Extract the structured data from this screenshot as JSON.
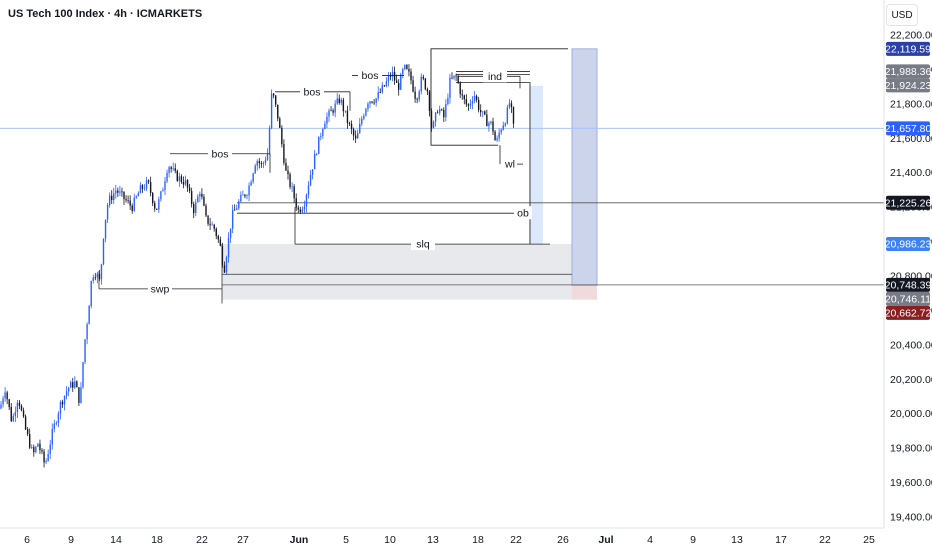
{
  "header": {
    "title": "US Tech 100 Index · 4h · ICMARKETS",
    "currency": "USD"
  },
  "colors": {
    "up": "#2962ff",
    "down": "#131722",
    "accent": "#2962ff",
    "grey_zone": "#e6e7ea",
    "target_zone": "#c5cfe8",
    "light_blue_zone": "#d8e6fb",
    "stop_zone": "#f0d6d8",
    "badge_blue": "#2a3fa8",
    "badge_grey": "#787b86",
    "badge_light_blue": "#3d83f0",
    "badge_black": "#131722",
    "badge_red": "#8a1f22"
  },
  "chart_data": {
    "type": "candlestick",
    "title": "US Tech 100 Index · 4h · ICMARKETS",
    "x_ticks": [
      "6",
      "9",
      "14",
      "18",
      "22",
      "27",
      "Jun",
      "5",
      "10",
      "13",
      "18",
      "22",
      "26",
      "Jul",
      "4",
      "9",
      "13",
      "17",
      "22",
      "25"
    ],
    "y_ticks": [
      "22,200.00",
      "22,000.00",
      "21,800.00",
      "21,600.00",
      "21,400.00",
      "21,200.00",
      "21,000.00",
      "20,800.00",
      "20,600.00",
      "20,400.00",
      "20,200.00",
      "20,000.00",
      "19,800.00",
      "19,600.00",
      "19,400.00"
    ],
    "ylim": [
      19360,
      22290
    ],
    "candle_anchors": [
      [
        0,
        20030
      ],
      [
        5,
        20150
      ],
      [
        12,
        19950
      ],
      [
        18,
        20100
      ],
      [
        25,
        19920
      ],
      [
        33,
        19760
      ],
      [
        38,
        19830
      ],
      [
        45,
        19700
      ],
      [
        52,
        19880
      ],
      [
        60,
        20050
      ],
      [
        68,
        20150
      ],
      [
        75,
        20180
      ],
      [
        80,
        20060
      ],
      [
        84,
        20380
      ],
      [
        88,
        20580
      ],
      [
        92,
        20810
      ],
      [
        96,
        20820
      ],
      [
        100,
        20760
      ],
      [
        104,
        21080
      ],
      [
        108,
        21230
      ],
      [
        116,
        21300
      ],
      [
        124,
        21250
      ],
      [
        132,
        21200
      ],
      [
        140,
        21300
      ],
      [
        148,
        21340
      ],
      [
        156,
        21180
      ],
      [
        162,
        21290
      ],
      [
        168,
        21450
      ],
      [
        176,
        21380
      ],
      [
        186,
        21340
      ],
      [
        194,
        21180
      ],
      [
        200,
        21300
      ],
      [
        206,
        21130
      ],
      [
        214,
        21080
      ],
      [
        220,
        20980
      ],
      [
        224,
        20830
      ],
      [
        232,
        21150
      ],
      [
        240,
        21240
      ],
      [
        248,
        21300
      ],
      [
        256,
        21480
      ],
      [
        262,
        21440
      ],
      [
        268,
        21520
      ],
      [
        272,
        21880
      ],
      [
        278,
        21720
      ],
      [
        286,
        21400
      ],
      [
        292,
        21300
      ],
      [
        298,
        21180
      ],
      [
        304,
        21220
      ],
      [
        310,
        21380
      ],
      [
        316,
        21520
      ],
      [
        324,
        21700
      ],
      [
        332,
        21760
      ],
      [
        340,
        21830
      ],
      [
        348,
        21690
      ],
      [
        356,
        21580
      ],
      [
        362,
        21720
      ],
      [
        368,
        21820
      ],
      [
        376,
        21830
      ],
      [
        384,
        21900
      ],
      [
        392,
        21980
      ],
      [
        398,
        21890
      ],
      [
        404,
        22010
      ],
      [
        410,
        21960
      ],
      [
        416,
        21830
      ],
      [
        422,
        21950
      ],
      [
        428,
        21870
      ],
      [
        432,
        21640
      ],
      [
        438,
        21780
      ],
      [
        444,
        21720
      ],
      [
        450,
        21930
      ],
      [
        456,
        21960
      ],
      [
        462,
        21840
      ],
      [
        468,
        21780
      ],
      [
        474,
        21860
      ],
      [
        480,
        21760
      ],
      [
        486,
        21700
      ],
      [
        492,
        21680
      ],
      [
        496,
        21560
      ],
      [
        500,
        21650
      ],
      [
        506,
        21720
      ],
      [
        510,
        21820
      ],
      [
        514,
        21640
      ]
    ],
    "zones": [
      {
        "name": "demand-zone",
        "x_from": 222,
        "x_to": 572,
        "y_from": 20662.72,
        "y_to": 20986.23
      },
      {
        "name": "light-blue-zone",
        "x_from": 529,
        "x_to": 543,
        "y_from": 20986.23,
        "y_to": 21905
      },
      {
        "name": "target-zone",
        "x_from": 572,
        "x_to": 597,
        "y_from": 20746.11,
        "y_to": 22119.59
      },
      {
        "name": "stop-zone",
        "x_from": 572,
        "x_to": 597,
        "y_from": 20662.72,
        "y_to": 20746.11
      }
    ],
    "annotations": [
      {
        "text": "bos",
        "x": 220,
        "y": 21510,
        "line_from": 170,
        "line_to": 270
      },
      {
        "text": "bos",
        "x": 312,
        "y": 21870,
        "line_from": 275,
        "line_to": 350
      },
      {
        "text": "bos",
        "x": 370,
        "y": 21965,
        "line_from": 352,
        "line_to": 404
      },
      {
        "text": "ind",
        "x": 495,
        "y": 21960,
        "line_from": 458,
        "line_to": 520
      },
      {
        "text": "wl",
        "x": 510,
        "y": 21450,
        "line_from": 500,
        "line_to": 500
      },
      {
        "text": "ob",
        "x": 523,
        "y": 21165,
        "line_from": 237,
        "line_to": 515
      },
      {
        "text": "slq",
        "x": 423,
        "y": 20985,
        "line_from": 295,
        "line_to": 550
      },
      {
        "text": "swp",
        "x": 160,
        "y": 20725,
        "line_from": 99,
        "line_to": 222
      }
    ],
    "price_labels": [
      {
        "text": "22,119.59",
        "value": 22119.59,
        "color": "#2a3fa8"
      },
      {
        "text": "21,988.36",
        "value": 21988.36,
        "color": "#787b86"
      },
      {
        "text": "21,924.23",
        "value": 21924.23,
        "color": "#787b86"
      },
      {
        "text": "21,657.80",
        "value": 21657.8,
        "color": "#2962ff"
      },
      {
        "text": "21,225.26",
        "value": 21225.26,
        "color": "#131722"
      },
      {
        "text": "20,986.23",
        "value": 20986.23,
        "color": "#3d83f0"
      },
      {
        "text": "20,748.39",
        "value": 20748.39,
        "color": "#131722"
      },
      {
        "text": "20,746.11",
        "value": 20746.11,
        "color": "#787b86"
      },
      {
        "text": "20,662.72",
        "value": 20662.72,
        "color": "#8a1f22"
      }
    ],
    "current_price": 21657.8,
    "ob_level": 21225.26,
    "swp_level": 20748.39
  }
}
